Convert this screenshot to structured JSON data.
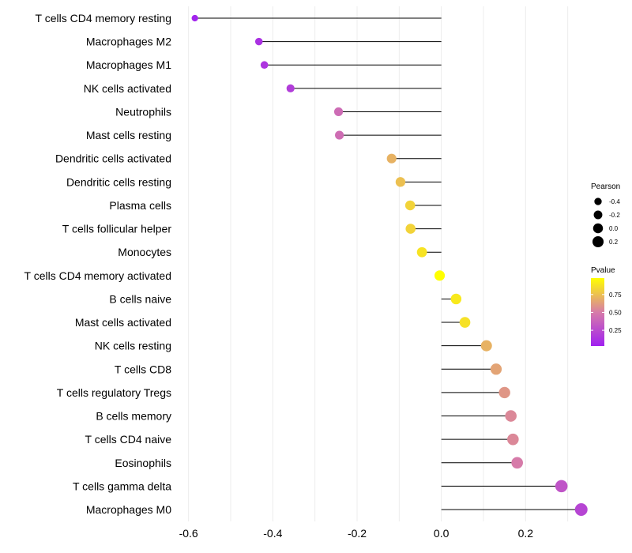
{
  "chart_data": {
    "type": "lollipop",
    "title": "",
    "xlabel": "",
    "ylabel": "",
    "xlim": [
      -0.62,
      0.34
    ],
    "xticks": [
      -0.6,
      -0.4,
      -0.2,
      0.0,
      0.2
    ],
    "xtick_labels": [
      "-0.6",
      "-0.4",
      "-0.2",
      "0.0",
      "0.2"
    ],
    "baseline": 0.0,
    "categories": [
      "T cells CD4 memory resting",
      "Macrophages M2",
      "Macrophages M1",
      "NK cells activated",
      "Neutrophils",
      "Mast cells resting",
      "Dendritic cells activated",
      "Dendritic cells resting",
      "Plasma cells",
      "T cells follicular helper",
      "Monocytes",
      "T cells CD4 memory activated",
      "B cells naive",
      "Mast cells activated",
      "NK cells resting",
      "T cells CD8",
      "T cells regulatory  Tregs ",
      "B cells memory",
      "T cells CD4 naive",
      "Eosinophils",
      "T cells gamma delta",
      "Macrophages M0"
    ],
    "pearson": [
      -0.585,
      -0.433,
      -0.42,
      -0.358,
      -0.244,
      -0.242,
      -0.118,
      -0.097,
      -0.074,
      -0.073,
      -0.046,
      -0.004,
      0.035,
      0.056,
      0.107,
      0.13,
      0.15,
      0.165,
      0.17,
      0.18,
      0.285,
      0.332
    ],
    "pvalue": [
      0.05,
      0.12,
      0.14,
      0.18,
      0.42,
      0.43,
      0.7,
      0.75,
      0.82,
      0.82,
      0.88,
      0.98,
      0.9,
      0.87,
      0.7,
      0.65,
      0.6,
      0.55,
      0.55,
      0.5,
      0.3,
      0.22
    ],
    "legend_size": {
      "title": "Pearson",
      "values": [
        -0.4,
        -0.2,
        0.0,
        0.2
      ],
      "labels": [
        "-0.4",
        "-0.2",
        "0.0",
        "0.2"
      ]
    },
    "legend_color": {
      "title": "Pvalue",
      "ticks": [
        0.25,
        0.5,
        0.75
      ],
      "tick_labels": [
        "0.25",
        "0.50",
        "0.75"
      ],
      "range": [
        0.03,
        0.98
      ]
    },
    "colors": {
      "low": "#a020f0",
      "mid": "#d77ca8",
      "high": "#ffff00",
      "stem": "#000000",
      "grid": "#ececec"
    },
    "legend_position": "right"
  }
}
